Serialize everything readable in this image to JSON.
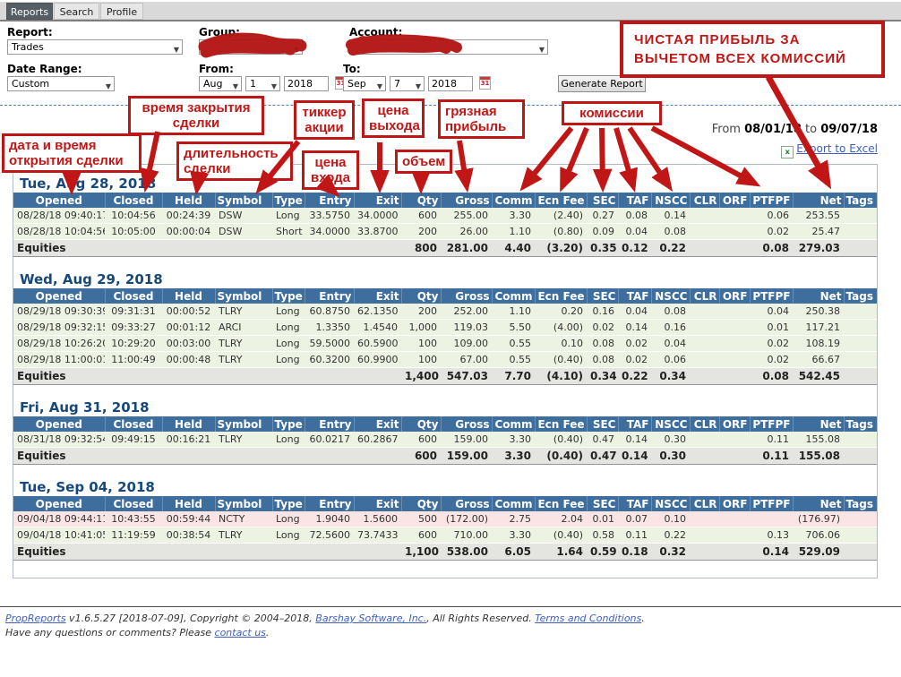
{
  "tabs": [
    {
      "label": "Reports",
      "active": true
    },
    {
      "label": "Search",
      "active": false
    },
    {
      "label": "Profile",
      "active": false
    }
  ],
  "form": {
    "report_label": "Report:",
    "report_value": "Trades",
    "group_label": "Group:",
    "group_value": "",
    "account_label": "Account:",
    "account_value": "",
    "date_range_label": "Date Range:",
    "date_range_value": "Custom",
    "from_label": "From:",
    "from_month": "Aug",
    "from_day": "1",
    "from_year": "2018",
    "to_label": "To:",
    "to_month": "Sep",
    "to_day": "7",
    "to_year": "2018",
    "calendar_icon_label": "31",
    "generate_button": "Generate Report"
  },
  "report_meta": {
    "from_label": "From",
    "from_date": "08/01/18",
    "to_label": "to",
    "to_date": "09/07/18",
    "export_label": "Export to Excel",
    "excel_icon_glyph": "x"
  },
  "annotations": {
    "net_note": "ЧИСТАЯ ПРИБЫЛЬ ЗА\nВЫЧЕТОМ ВСЕХ КОМИССИЙ",
    "open_datetime": "дата и время\nоткрытия сделки",
    "close_time": "время закрытия\nсделки",
    "duration": "длительность\nсделки",
    "ticker": "тиккер\nакции",
    "entry_price": "цена\nвхода",
    "exit_price": "цена\nвыхода",
    "volume": "объем",
    "gross_profit": "грязная\nприбыль",
    "commissions": "комиссии",
    "accent_color": "#c11616"
  },
  "table": {
    "totals_label": "Equities",
    "columns": [
      "Opened",
      "Closed",
      "Held",
      "Symbol",
      "Type",
      "Entry",
      "Exit",
      "Qty",
      "Gross",
      "Comm",
      "Ecn Fee",
      "SEC",
      "TAF",
      "NSCC",
      "CLR",
      "ORF",
      "PTFPF",
      "Net",
      "Tags"
    ],
    "sections": [
      {
        "title": "Tue, Aug 28, 2018",
        "rows": [
          {
            "state": "win",
            "cells": [
              "08/28/18 09:40:17",
              "10:04:56",
              "00:24:39",
              "DSW",
              "Long",
              "33.5750",
              "34.0000",
              "600",
              "255.00",
              "3.30",
              "(2.40)",
              "0.27",
              "0.08",
              "0.14",
              "",
              "",
              "0.06",
              "253.55",
              ""
            ]
          },
          {
            "state": "win",
            "cells": [
              "08/28/18 10:04:56",
              "10:05:00",
              "00:00:04",
              "DSW",
              "Short",
              "34.0000",
              "33.8700",
              "200",
              "26.00",
              "1.10",
              "(0.80)",
              "0.09",
              "0.04",
              "0.08",
              "",
              "",
              "0.02",
              "25.47",
              ""
            ]
          }
        ],
        "totals": [
          "800",
          "281.00",
          "4.40",
          "(3.20)",
          "0.35",
          "0.12",
          "0.22",
          "",
          "",
          "0.08",
          "279.03",
          ""
        ]
      },
      {
        "title": "Wed, Aug 29, 2018",
        "rows": [
          {
            "state": "win",
            "cells": [
              "08/29/18 09:30:39",
              "09:31:31",
              "00:00:52",
              "TLRY",
              "Long",
              "60.8750",
              "62.1350",
              "200",
              "252.00",
              "1.10",
              "0.20",
              "0.16",
              "0.04",
              "0.08",
              "",
              "",
              "0.04",
              "250.38",
              ""
            ]
          },
          {
            "state": "win",
            "cells": [
              "08/29/18 09:32:15",
              "09:33:27",
              "00:01:12",
              "ARCI",
              "Long",
              "1.3350",
              "1.4540",
              "1,000",
              "119.03",
              "5.50",
              "(4.00)",
              "0.02",
              "0.14",
              "0.16",
              "",
              "",
              "0.01",
              "117.21",
              ""
            ]
          },
          {
            "state": "win",
            "cells": [
              "08/29/18 10:26:20",
              "10:29:20",
              "00:03:00",
              "TLRY",
              "Long",
              "59.5000",
              "60.5900",
              "100",
              "109.00",
              "0.55",
              "0.10",
              "0.08",
              "0.02",
              "0.04",
              "",
              "",
              "0.02",
              "108.19",
              ""
            ]
          },
          {
            "state": "win",
            "cells": [
              "08/29/18 11:00:01",
              "11:00:49",
              "00:00:48",
              "TLRY",
              "Long",
              "60.3200",
              "60.9900",
              "100",
              "67.00",
              "0.55",
              "(0.40)",
              "0.08",
              "0.02",
              "0.06",
              "",
              "",
              "0.02",
              "66.67",
              ""
            ]
          }
        ],
        "totals": [
          "1,400",
          "547.03",
          "7.70",
          "(4.10)",
          "0.34",
          "0.22",
          "0.34",
          "",
          "",
          "0.08",
          "542.45",
          ""
        ]
      },
      {
        "title": "Fri, Aug 31, 2018",
        "rows": [
          {
            "state": "win",
            "cells": [
              "08/31/18 09:32:54",
              "09:49:15",
              "00:16:21",
              "TLRY",
              "Long",
              "60.0217",
              "60.2867",
              "600",
              "159.00",
              "3.30",
              "(0.40)",
              "0.47",
              "0.14",
              "0.30",
              "",
              "",
              "0.11",
              "155.08",
              ""
            ]
          }
        ],
        "totals": [
          "600",
          "159.00",
          "3.30",
          "(0.40)",
          "0.47",
          "0.14",
          "0.30",
          "",
          "",
          "0.11",
          "155.08",
          ""
        ]
      },
      {
        "title": "Tue, Sep 04, 2018",
        "rows": [
          {
            "state": "loss",
            "cells": [
              "09/04/18 09:44:11",
              "10:43:55",
              "00:59:44",
              "NCTY",
              "Long",
              "1.9040",
              "1.5600",
              "500",
              "(172.00)",
              "2.75",
              "2.04",
              "0.01",
              "0.07",
              "0.10",
              "",
              "",
              "",
              "(176.97)",
              ""
            ]
          },
          {
            "state": "win",
            "cells": [
              "09/04/18 10:41:05",
              "11:19:59",
              "00:38:54",
              "TLRY",
              "Long",
              "72.5600",
              "73.7433",
              "600",
              "710.00",
              "3.30",
              "(0.40)",
              "0.58",
              "0.11",
              "0.22",
              "",
              "",
              "0.13",
              "706.06",
              ""
            ]
          }
        ],
        "totals": [
          "1,100",
          "538.00",
          "6.05",
          "1.64",
          "0.59",
          "0.18",
          "0.32",
          "",
          "",
          "0.14",
          "529.09",
          ""
        ]
      }
    ]
  },
  "footer": {
    "l1_link1": "PropReports",
    "l1_t1": " v1.6.5.27 [2018-07-09], Copyright © 2004–2018, ",
    "l1_link2": "Barshay Software, Inc.",
    "l1_t2": ", All Rights Reserved. ",
    "l1_link3": "Terms and Conditions",
    "l1_t3": ".",
    "l2_t1": "Have any questions or comments? Please ",
    "l2_link1": "contact us",
    "l2_t2": "."
  }
}
